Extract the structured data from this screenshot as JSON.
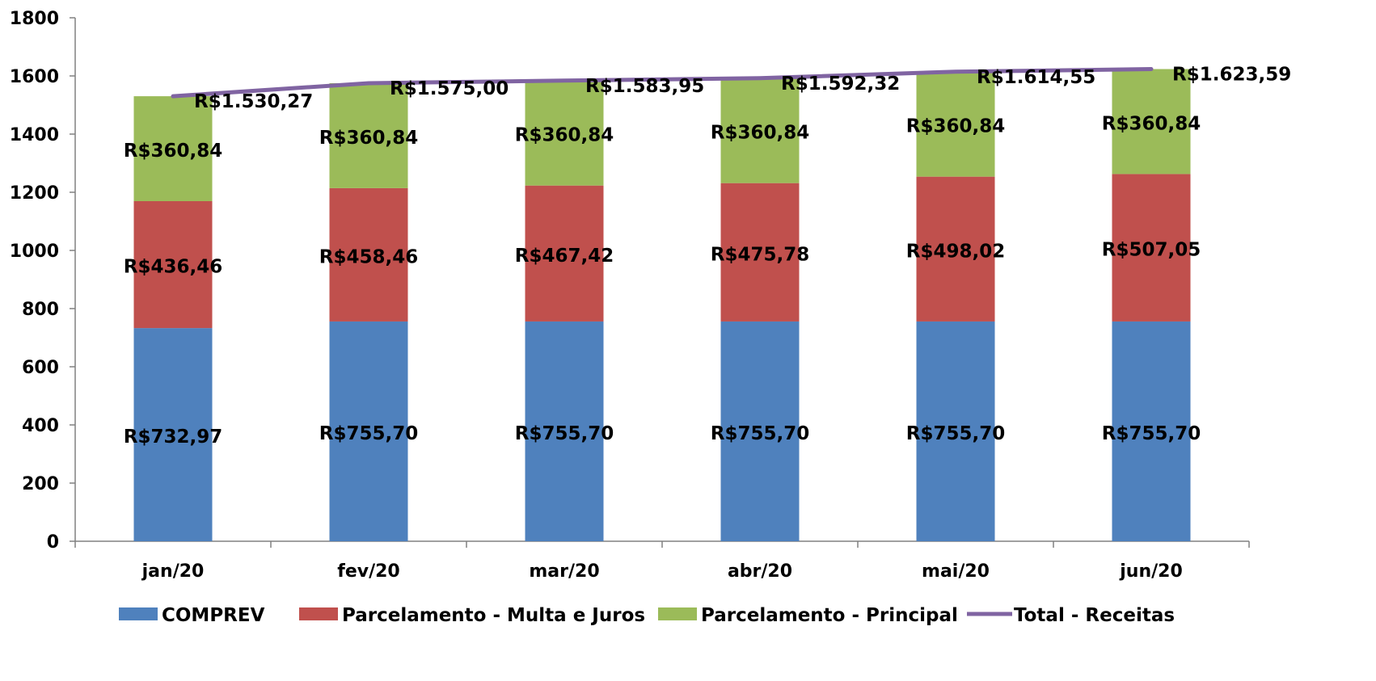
{
  "chart_data": {
    "type": "bar",
    "stacked": true,
    "categories": [
      "jan/20",
      "fev/20",
      "mar/20",
      "abr/20",
      "mai/20",
      "jun/20"
    ],
    "series": [
      {
        "name": "COMPREV",
        "color": "#4F81BD",
        "values": [
          732.97,
          755.7,
          755.7,
          755.7,
          755.7,
          755.7
        ],
        "labels": [
          "R$732,97",
          "R$755,70",
          "R$755,70",
          "R$755,70",
          "R$755,70",
          "R$755,70"
        ]
      },
      {
        "name": "Parcelamento - Multa e Juros",
        "color": "#C0504D",
        "values": [
          436.46,
          458.46,
          467.42,
          475.78,
          498.02,
          507.05
        ],
        "labels": [
          "R$436,46",
          "R$458,46",
          "R$467,42",
          "R$475,78",
          "R$498,02",
          "R$507,05"
        ]
      },
      {
        "name": "Parcelamento - Principal",
        "color": "#9BBB59",
        "values": [
          360.84,
          360.84,
          360.84,
          360.84,
          360.84,
          360.84
        ],
        "labels": [
          "R$360,84",
          "R$360,84",
          "R$360,84",
          "R$360,84",
          "R$360,84",
          "R$360,84"
        ]
      }
    ],
    "line": {
      "name": "Total - Receitas",
      "color": "#8064A2",
      "values": [
        1530.27,
        1575.0,
        1583.95,
        1592.32,
        1614.55,
        1623.59
      ],
      "labels": [
        "R$1.530,27",
        "R$1.575,00",
        "R$1.583,95",
        "R$1.592,32",
        "R$1.614,55",
        "R$1.623,59"
      ]
    },
    "yticks": [
      "0",
      "200",
      "400",
      "600",
      "800",
      "1000",
      "1200",
      "1400",
      "1600",
      "1800"
    ],
    "ylim": [
      0,
      1800
    ],
    "grid": false,
    "legend_position": "bottom",
    "title": "",
    "xlabel": "",
    "ylabel": ""
  }
}
